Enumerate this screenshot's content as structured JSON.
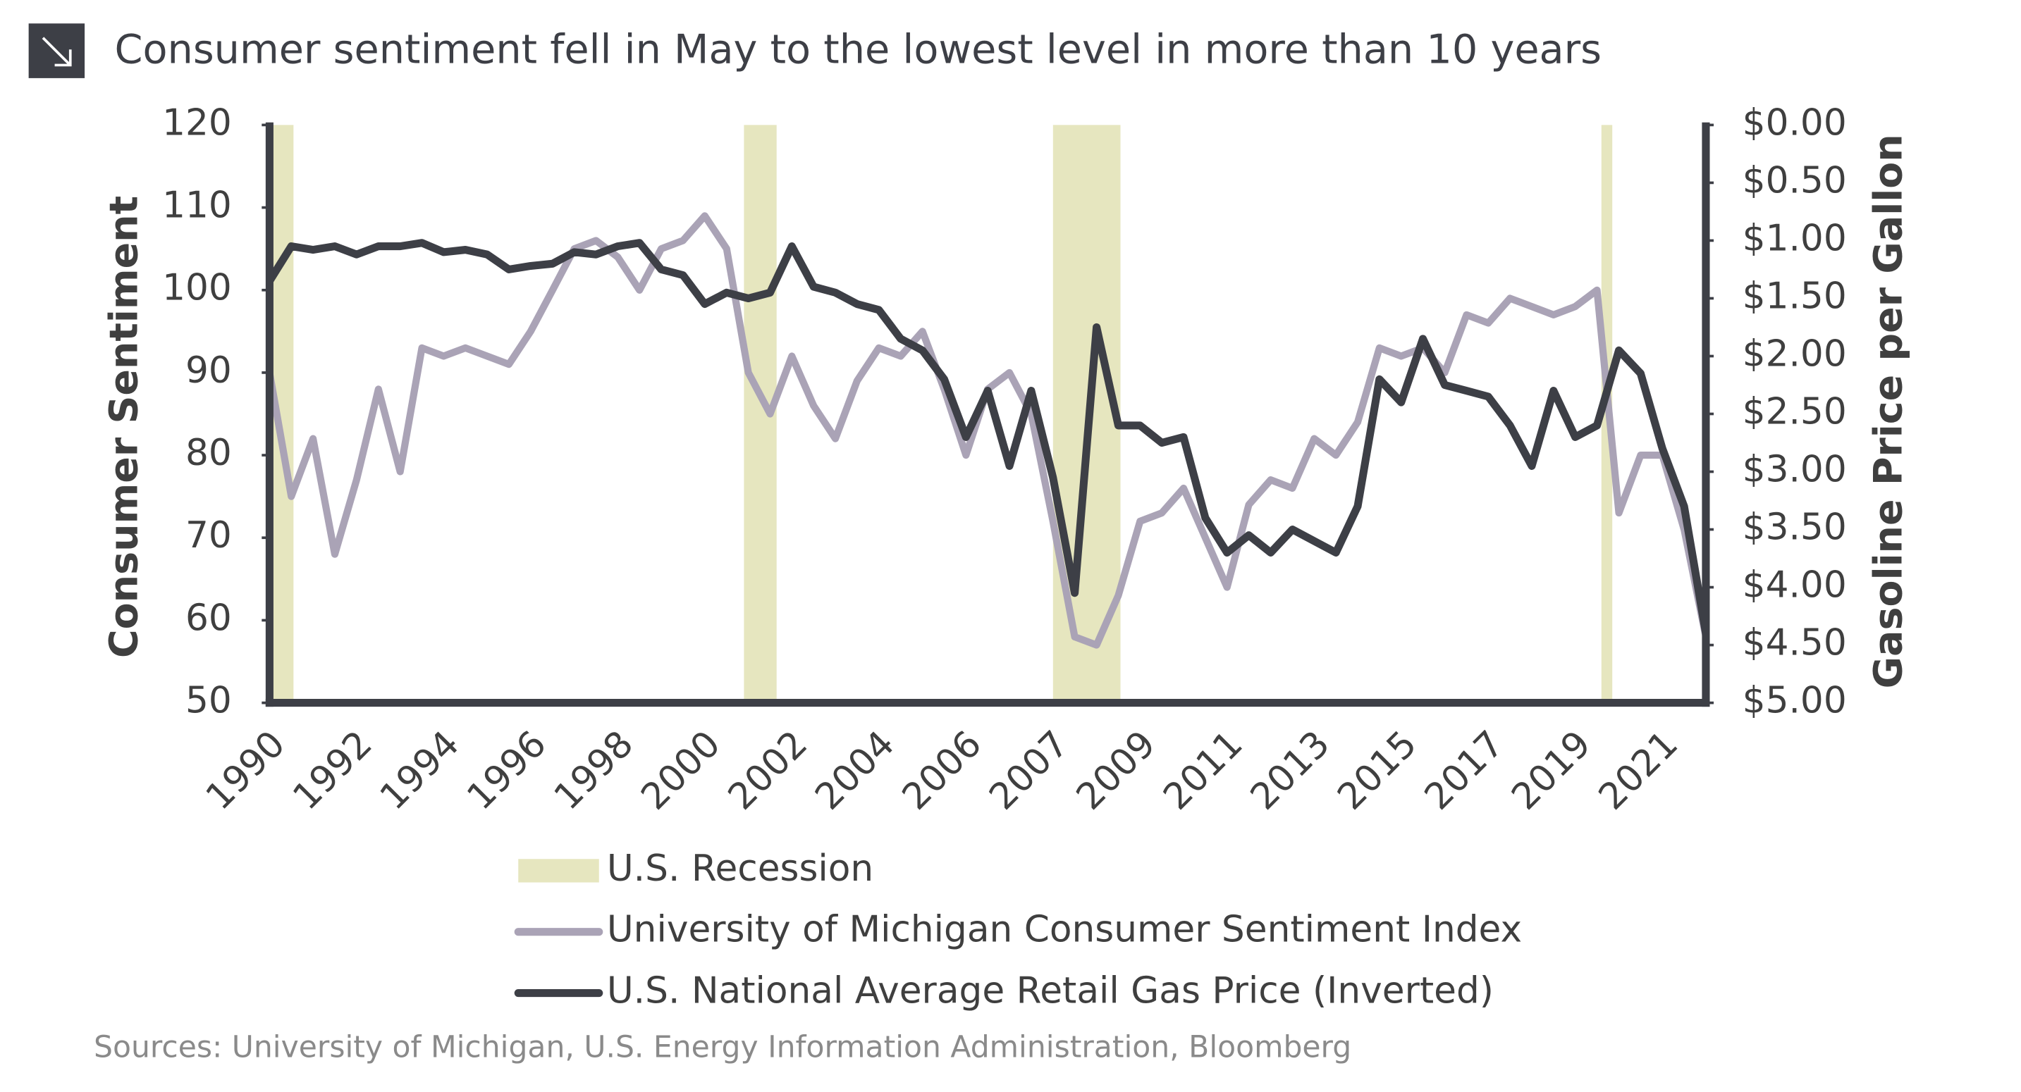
{
  "chart_data": {
    "type": "line",
    "title": "Consumer sentiment fell in May to the lowest level in more than 10 years",
    "y_label": "Consumer Sentiment",
    "y2_label": "Gasoline Price per Gallon",
    "source": "Sources: University of Michigan, U.S. Energy Information Administration, Bloomberg",
    "categories": [
      "1990",
      null,
      null,
      null,
      "1992",
      null,
      null,
      null,
      "1994",
      null,
      null,
      null,
      "1996",
      null,
      null,
      null,
      "1998",
      null,
      null,
      null,
      "2000",
      null,
      null,
      null,
      "2002",
      null,
      null,
      null,
      "2004",
      null,
      null,
      null,
      "2006",
      null,
      null,
      null,
      "2007",
      null,
      null,
      null,
      "2009",
      null,
      null,
      null,
      "2011",
      null,
      null,
      null,
      "2013",
      null,
      null,
      null,
      "2015",
      null,
      null,
      null,
      "2017",
      null,
      null,
      null,
      "2019",
      null,
      null,
      null,
      "2021",
      null,
      null
    ],
    "ylim": [
      50,
      120
    ],
    "yticks": [
      50,
      60,
      70,
      80,
      90,
      100,
      110,
      120
    ],
    "y2lim": [
      0,
      5
    ],
    "y2ticks": [
      {
        "value": 0,
        "label": "$0.00"
      },
      {
        "value": 0.5,
        "label": "$0.50"
      },
      {
        "value": 1,
        "label": "$1.00"
      },
      {
        "value": 1.5,
        "label": "$1.50"
      },
      {
        "value": 2,
        "label": "$2.00"
      },
      {
        "value": 2.5,
        "label": "$2.50"
      },
      {
        "value": 3,
        "label": "$3.00"
      },
      {
        "value": 3.5,
        "label": "$3.50"
      },
      {
        "value": 4,
        "label": "$4.00"
      },
      {
        "value": 4.5,
        "label": "$4.50"
      },
      {
        "value": 5,
        "label": "$5.00"
      }
    ],
    "y2_inverted": true,
    "recession": {
      "name": "U.S. Recession",
      "color": "#e6e6bf",
      "spans": [
        [
          0,
          1.1
        ],
        [
          21.8,
          23.3
        ],
        [
          36,
          39.1
        ],
        [
          61.2,
          61.7
        ]
      ]
    },
    "series": [
      {
        "name": "University of Michigan Consumer Sentiment Index",
        "color": "#aaa3b6",
        "values": [
          90,
          75,
          82,
          68,
          77,
          88,
          78,
          93,
          92,
          93,
          92,
          91,
          95,
          100,
          105,
          106,
          104,
          100,
          105,
          106,
          109,
          105,
          90,
          85,
          92,
          86,
          82,
          89,
          93,
          92,
          95,
          88,
          80,
          88,
          90,
          85,
          72,
          58,
          57,
          63,
          72,
          73,
          76,
          70,
          64,
          74,
          77,
          76,
          82,
          80,
          84,
          93,
          92,
          93,
          90,
          97,
          96,
          99,
          98,
          97,
          98,
          100,
          73,
          80,
          80,
          71,
          58
        ]
      },
      {
        "name": "U.S. National Average Retail Gas Price (Inverted)",
        "color": "#3d3f46",
        "axis": "y2",
        "values": [
          1.35,
          1.05,
          1.08,
          1.05,
          1.12,
          1.05,
          1.05,
          1.02,
          1.1,
          1.08,
          1.12,
          1.25,
          1.22,
          1.2,
          1.1,
          1.12,
          1.05,
          1.02,
          1.25,
          1.3,
          1.55,
          1.45,
          1.5,
          1.45,
          1.05,
          1.4,
          1.45,
          1.55,
          1.6,
          1.85,
          1.95,
          2.2,
          2.7,
          2.3,
          2.95,
          2.3,
          3.05,
          4.05,
          1.75,
          2.6,
          2.6,
          2.75,
          2.7,
          3.4,
          3.7,
          3.55,
          3.7,
          3.5,
          3.6,
          3.7,
          3.3,
          2.2,
          2.4,
          1.85,
          2.25,
          2.3,
          2.35,
          2.6,
          2.95,
          2.3,
          2.7,
          2.6,
          1.95,
          2.15,
          2.8,
          3.3,
          4.4
        ]
      }
    ]
  }
}
